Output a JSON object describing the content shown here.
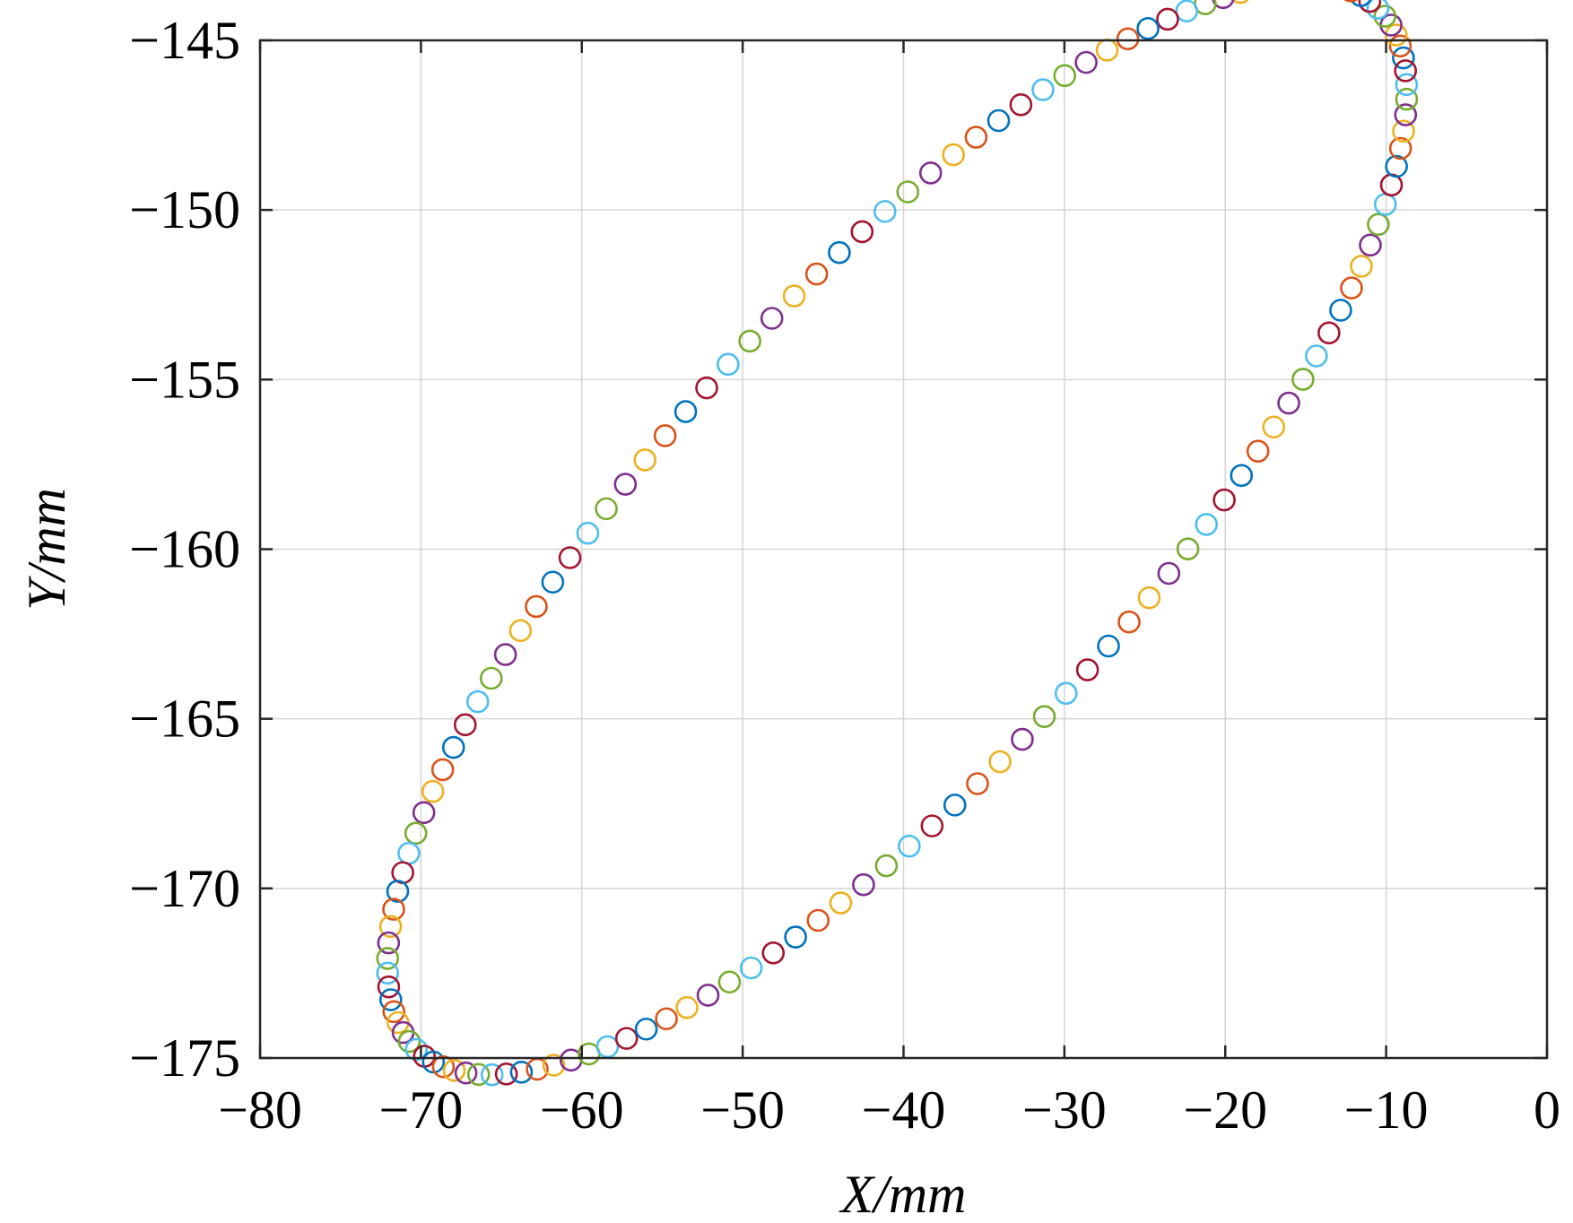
{
  "chart_data": {
    "type": "scatter",
    "title": "",
    "xlabel": "X/mm",
    "ylabel": "Y/mm",
    "xlim": [
      -80,
      0
    ],
    "ylim": [
      -175,
      -145
    ],
    "xticks": [
      -80,
      -70,
      -60,
      -50,
      -40,
      -30,
      -20,
      -10,
      0
    ],
    "yticks": [
      -145,
      -150,
      -155,
      -160,
      -165,
      -170,
      -175
    ],
    "xtick_labels": [
      "−80",
      "−70",
      "−60",
      "−50",
      "−40",
      "−30",
      "−20",
      "−10",
      "0"
    ],
    "ytick_labels": [
      "−145",
      "−150",
      "−155",
      "−160",
      "−165",
      "−170",
      "−175"
    ],
    "grid": true,
    "marker": "open-circle",
    "marker_colors": [
      "#0072BD",
      "#D95319",
      "#EDB120",
      "#7E2F8E",
      "#77AC30",
      "#4DBEEE",
      "#A2142F"
    ],
    "ellipse": {
      "center_x": -40.4,
      "center_y": -159.4,
      "semi_major": 34.4,
      "semi_minor": 8.9,
      "angle_deg": 23.8
    },
    "n_points": 140
  }
}
